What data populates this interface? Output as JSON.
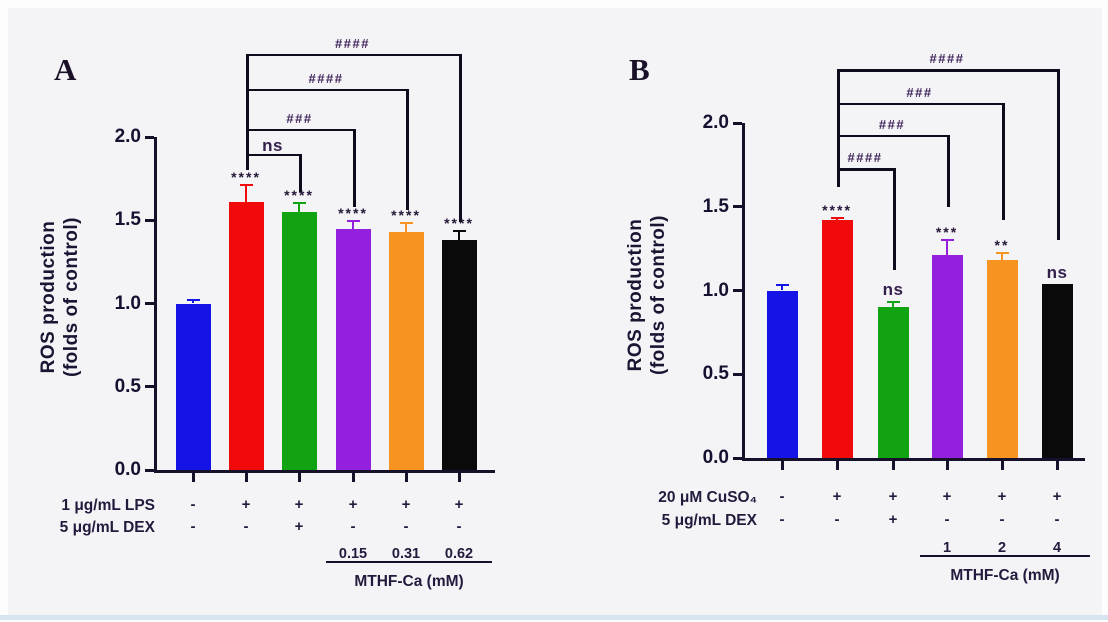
{
  "figure": {
    "background": "#f4f3f6",
    "edge_color": "#fdfdfe",
    "bottom_strip_color": "#d7e3f1",
    "axis_color": "#16102b",
    "bracket_color": "#0f0b1d",
    "text_color": "#241a3d",
    "sig_star_color": "#241637",
    "sig_hash_color": "#40265c"
  },
  "chart_data": [
    {
      "panel_letter": "A",
      "type": "bar",
      "ylabel_line1": "ROS production",
      "ylabel_line2": "(folds of control)",
      "ylim": [
        0,
        2.0
      ],
      "yticks": [
        {
          "value": 0.0,
          "label": "0.0"
        },
        {
          "value": 0.5,
          "label": "0.5"
        },
        {
          "value": 1.0,
          "label": "1.0"
        },
        {
          "value": 1.5,
          "label": "1.5"
        },
        {
          "value": 2.0,
          "label": "2.0"
        }
      ],
      "bars": [
        {
          "color": "#1414e6",
          "value": 1.0,
          "error": 0.03,
          "sig": ""
        },
        {
          "color": "#f00a0a",
          "value": 1.61,
          "error": 0.11,
          "sig": "****"
        },
        {
          "color": "#12a312",
          "value": 1.55,
          "error": 0.06,
          "sig": "****"
        },
        {
          "color": "#9320dc",
          "value": 1.45,
          "error": 0.05,
          "sig": "****"
        },
        {
          "color": "#f79421",
          "value": 1.43,
          "error": 0.06,
          "sig": "****"
        },
        {
          "color": "#0a0a0a",
          "value": 1.38,
          "error": 0.06,
          "sig": "****"
        }
      ],
      "brackets": [
        {
          "from": 1,
          "to": 2,
          "label": "ns",
          "top": 1.9,
          "left_end": 1.8,
          "right_end": 1.67
        },
        {
          "from": 1,
          "to": 3,
          "label": "###",
          "top": 2.05,
          "left_end": 1.8,
          "right_end": 1.58
        },
        {
          "from": 1,
          "to": 4,
          "label": "####",
          "top": 2.29,
          "left_end": 1.8,
          "right_end": 1.56
        },
        {
          "from": 1,
          "to": 5,
          "label": "####",
          "top": 2.5,
          "left_end": 1.8,
          "right_end": 1.49
        }
      ],
      "treatment_rows": [
        {
          "label": "1 μg/mL LPS",
          "symbols": [
            "-",
            "+",
            "+",
            "+",
            "+",
            "+"
          ]
        },
        {
          "label": "5 μg/mL DEX",
          "symbols": [
            "-",
            "-",
            "+",
            "-",
            "-",
            "-"
          ]
        }
      ],
      "dose_row": {
        "values": [
          "0.15",
          "0.31",
          "0.62"
        ],
        "bar_indices": [
          3,
          4,
          5
        ],
        "label": "MTHF-Ca (mM)"
      }
    },
    {
      "panel_letter": "B",
      "type": "bar",
      "ylabel_line1": "ROS production",
      "ylabel_line2": "(folds of control)",
      "ylim": [
        0,
        2.0
      ],
      "yticks": [
        {
          "value": 0.0,
          "label": "0.0"
        },
        {
          "value": 0.5,
          "label": "0.5"
        },
        {
          "value": 1.0,
          "label": "1.0"
        },
        {
          "value": 1.5,
          "label": "1.5"
        },
        {
          "value": 2.0,
          "label": "2.0"
        }
      ],
      "bars": [
        {
          "color": "#1414e6",
          "value": 1.0,
          "error": 0.04,
          "sig": ""
        },
        {
          "color": "#f00a0a",
          "value": 1.42,
          "error": 0.02,
          "sig": "****"
        },
        {
          "color": "#12a312",
          "value": 0.9,
          "error": 0.04,
          "sig": "ns"
        },
        {
          "color": "#9320dc",
          "value": 1.21,
          "error": 0.1,
          "sig": "***"
        },
        {
          "color": "#f79421",
          "value": 1.18,
          "error": 0.05,
          "sig": "**"
        },
        {
          "color": "#0a0a0a",
          "value": 1.04,
          "error": 0.0,
          "sig": "ns"
        }
      ],
      "brackets": [
        {
          "from": 1,
          "to": 2,
          "label": "####",
          "top": 1.73,
          "left_end": 1.62,
          "right_end": 1.12
        },
        {
          "from": 1,
          "to": 3,
          "label": "###",
          "top": 1.93,
          "left_end": 1.62,
          "right_end": 1.5
        },
        {
          "from": 1,
          "to": 4,
          "label": "###",
          "top": 2.12,
          "left_end": 1.62,
          "right_end": 1.42
        },
        {
          "from": 1,
          "to": 5,
          "label": "####",
          "top": 2.32,
          "left_end": 1.62,
          "right_end": 1.3
        }
      ],
      "treatment_rows": [
        {
          "label": "20 μM CuSO₄",
          "symbols": [
            "-",
            "+",
            "+",
            "+",
            "+",
            "+"
          ]
        },
        {
          "label": "5 μg/mL DEX",
          "symbols": [
            "-",
            "-",
            "+",
            "-",
            "-",
            "-"
          ]
        }
      ],
      "dose_row": {
        "values": [
          "1",
          "2",
          "4"
        ],
        "bar_indices": [
          3,
          4,
          5
        ],
        "label": "MTHF-Ca (mM)"
      }
    }
  ]
}
